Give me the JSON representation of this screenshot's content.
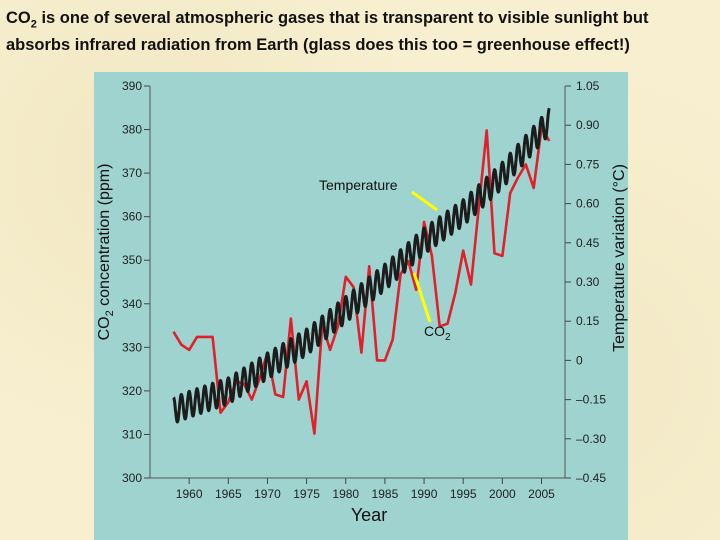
{
  "title": {
    "co2_prefix": "CO",
    "co2_sub": "2",
    "line1_rest": " is one of several atmospheric gases that is transparent to visible sunlight but",
    "line2": "absorbs infrared radiation from Earth (glass does this too  = greenhouse effect!)"
  },
  "colors": {
    "panel_bg": "#9ed3d0",
    "temperature_line": "#e0202a",
    "co2_line": "#1c1c1c",
    "annotation_line": "#ffff00"
  },
  "chart_data": {
    "type": "line",
    "xlabel": "Year",
    "ylabel_left_prefix": "CO",
    "ylabel_left_sub": "2",
    "ylabel_left_rest": " concentration (ppm)",
    "ylabel_right": "Temperature variation (°C)",
    "xlim": [
      1955,
      2008
    ],
    "ylim_left": [
      300,
      390
    ],
    "ylim_right": [
      -0.45,
      1.05
    ],
    "x_ticks": [
      "1960",
      "1965",
      "1970",
      "1975",
      "1980",
      "1985",
      "1990",
      "1995",
      "2000",
      "2005"
    ],
    "y_left_ticks": [
      "300",
      "310",
      "320",
      "330",
      "340",
      "350",
      "360",
      "370",
      "380",
      "390"
    ],
    "y_right_ticks": [
      "–0.45",
      "–0.30",
      "–0.15",
      "0",
      "0.15",
      "0.30",
      "0.45",
      "0.60",
      "0.75",
      "0.90",
      "1.05"
    ],
    "annotations": {
      "temperature": "Temperature",
      "co2_prefix": "CO",
      "co2_sub": "2"
    },
    "series": [
      {
        "name": "Temperature",
        "axis": "right",
        "x": [
          1958,
          1959,
          1960,
          1961,
          1962,
          1963,
          1964,
          1965,
          1966,
          1967,
          1968,
          1969,
          1970,
          1971,
          1972,
          1973,
          1974,
          1975,
          1976,
          1977,
          1978,
          1979,
          1980,
          1981,
          1982,
          1983,
          1984,
          1985,
          1986,
          1987,
          1988,
          1989,
          1990,
          1991,
          1992,
          1993,
          1994,
          1995,
          1996,
          1997,
          1998,
          1999,
          2000,
          2001,
          2002,
          2003,
          2004,
          2005,
          2006
        ],
        "values": [
          0.11,
          0.06,
          0.04,
          0.09,
          0.09,
          0.09,
          -0.2,
          -0.16,
          -0.08,
          -0.09,
          -0.15,
          -0.07,
          0.03,
          -0.13,
          -0.14,
          0.16,
          -0.15,
          -0.08,
          -0.28,
          0.14,
          0.04,
          0.13,
          0.32,
          0.28,
          0.03,
          0.36,
          0.0,
          0.0,
          0.08,
          0.33,
          0.38,
          0.27,
          0.53,
          0.4,
          0.13,
          0.14,
          0.26,
          0.42,
          0.29,
          0.59,
          0.88,
          0.41,
          0.4,
          0.64,
          0.7,
          0.75,
          0.66,
          0.89,
          0.84
        ]
      },
      {
        "name": "CO2",
        "axis": "left",
        "x": [
          1958,
          1960,
          1965,
          1970,
          1975,
          1980,
          1985,
          1990,
          1995,
          2000,
          2005,
          2006
        ],
        "values": [
          315.5,
          316.9,
          320.0,
          325.7,
          331.2,
          338.7,
          346.1,
          354.4,
          360.9,
          369.5,
          379.8,
          381.9
        ],
        "seasonal_amplitude_ppm": 3
      }
    ]
  }
}
